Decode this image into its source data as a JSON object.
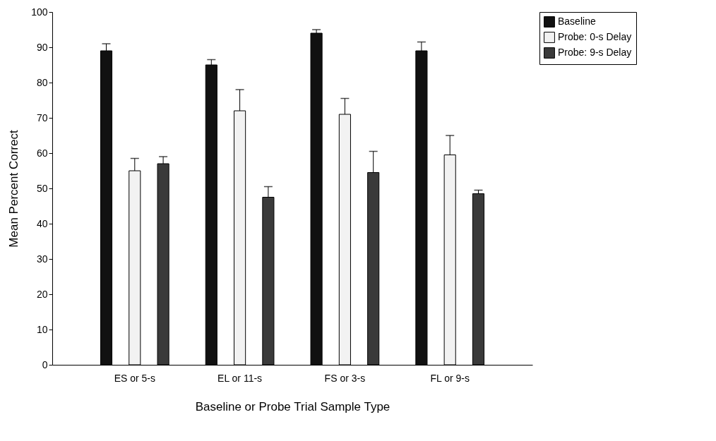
{
  "chart_data": {
    "type": "bar",
    "xlabel": "Baseline or Probe Trial Sample Type",
    "ylabel": "Mean Percent Correct",
    "categories": [
      "ES or 5-s",
      "EL or 11-s",
      "FS or 3-s",
      "FL or 9-s"
    ],
    "series": [
      {
        "name": "Baseline",
        "color": "#111111",
        "values": [
          89,
          85,
          94,
          89
        ],
        "errors": [
          [
            89,
            91
          ],
          [
            85,
            86.5
          ],
          [
            94,
            95
          ],
          [
            89,
            91.5
          ]
        ]
      },
      {
        "name": "Probe: 0-s Delay",
        "color": "#f2f2f2",
        "values": [
          55,
          72,
          71,
          59.5
        ],
        "errors": [
          [
            55,
            58.5
          ],
          [
            72,
            78
          ],
          [
            71,
            75.5
          ],
          [
            59.5,
            65
          ]
        ]
      },
      {
        "name": "Probe: 9-s Delay",
        "color": "#3a3a3a",
        "values": [
          57,
          47.5,
          54.5,
          48.5
        ],
        "errors": [
          [
            57,
            59
          ],
          [
            47.5,
            50.5
          ],
          [
            54.5,
            60.5
          ],
          [
            48.5,
            49.5
          ]
        ]
      }
    ],
    "ylim": [
      0,
      100
    ],
    "yticks": [
      0,
      10,
      20,
      30,
      40,
      50,
      60,
      70,
      80,
      90,
      100
    ],
    "grid": false,
    "legend": "top right"
  }
}
